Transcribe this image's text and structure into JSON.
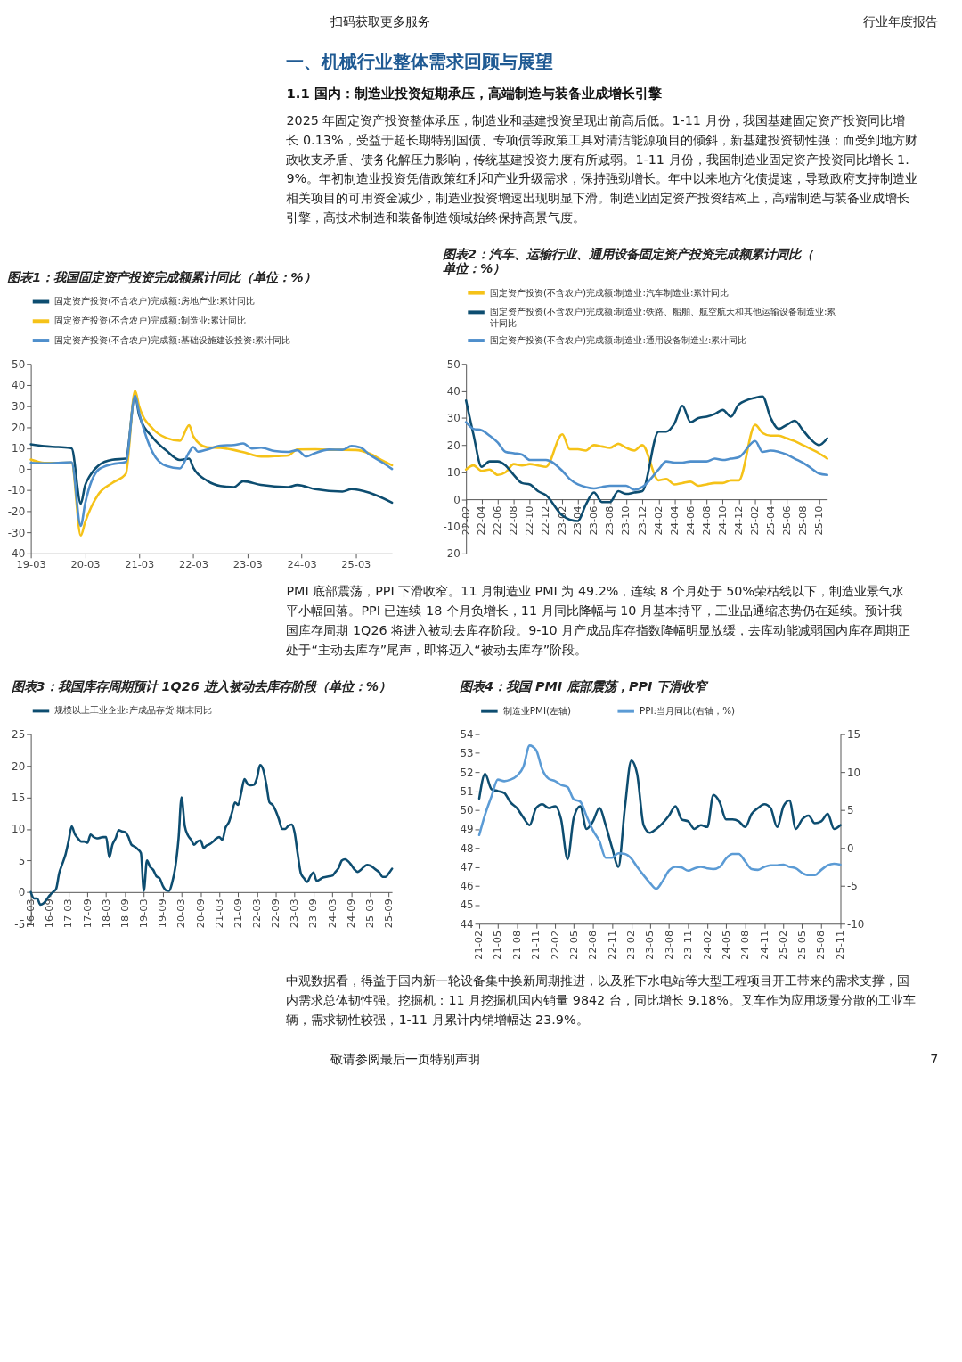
{
  "chart_data": [
    {
      "type": "other",
      "annotations": [
        "扫码获取更多服务",
        "行业年度报告"
      ]
    },
    {
      "type": "other",
      "title": "一、机械行业整体需求回顾与展望",
      "subtitle": "1.1 国内：制造业投资短期承压，高端制造与装备业成增长引擎",
      "annotations": [
        "2025 年固定资产投资整体承压，制造业和基建投资呈现出前高后低。1-11 月份，我国基建固定资产投资同比增长 0.13%，受益于超长期特别国债、专项债等政策工具对清洁能源项目的倾斜，新基建投资韧性强；而受到地方财政收支矛盾、债务化解压力影响，传统基建投资力度有所减弱。1-11 月份，我国制造业固定资产投资同比增长 1.9%。年初制造业投资凭借政策红利和产业升级需求，保持强劲增长。年中以来地方化债提速，导致政府支持制造业相关项目的可用资金减少，制造业投资增速出现明显下滑。制造业固定资产投资结构上，高端制造与装备业成增长引擎，高技术制造和装备制造领域始终保持高景气度。"
      ]
    },
    {
      "type": "line",
      "title": "图表1：我国固定资产投资完成额累计同比（单位：%）",
      "legend": "top",
      "xlim": [
        "2019-03",
        "2025-11"
      ],
      "ylim": [
        -40,
        50
      ],
      "yticks": [
        -40,
        -30,
        -20,
        -10,
        0,
        10,
        20,
        30,
        40,
        50
      ],
      "xticks": [
        {
          "value": "2019-03",
          "label": "19-03"
        },
        {
          "value": "2020-03",
          "label": "20-03"
        },
        {
          "value": "2021-03",
          "label": "21-03"
        },
        {
          "value": "2022-03",
          "label": "22-03"
        },
        {
          "value": "2023-03",
          "label": "23-03"
        },
        {
          "value": "2024-03",
          "label": "24-03"
        },
        {
          "value": "2025-03",
          "label": "25-03"
        }
      ],
      "series": [
        {
          "name": "固定资产投资(不含农户)完成额:房地产业:累计同比",
          "color": "#0d4d70",
          "x": [
            "2019-03",
            "2019-06",
            "2019-09",
            "2019-12",
            "2020-02",
            "2020-03",
            "2020-04",
            "2020-06",
            "2020-09",
            "2020-12",
            "2021-02",
            "2021-03",
            "2021-06",
            "2021-09",
            "2021-12",
            "2022-02",
            "2022-03",
            "2022-06",
            "2022-09",
            "2022-12",
            "2023-02",
            "2023-06",
            "2023-12",
            "2024-02",
            "2024-06",
            "2024-12",
            "2025-02",
            "2025-06",
            "2025-11"
          ],
          "values": [
            11.8,
            10.9,
            10.5,
            9.9,
            -16.3,
            -7.7,
            -3.3,
            1.9,
            4.5,
            5,
            35,
            25.6,
            15,
            8.8,
            4.4,
            5,
            0.7,
            -5.4,
            -8,
            -8.5,
            -5.7,
            -7.5,
            -8.5,
            -7.5,
            -9.5,
            -10.6,
            -9.5,
            -11.2,
            -15.9
          ]
        },
        {
          "name": "固定资产投资(不含农户)完成额:制造业:累计同比",
          "color": "#f5c218",
          "x": [
            "2019-03",
            "2019-06",
            "2019-12",
            "2020-02",
            "2020-03",
            "2020-06",
            "2020-09",
            "2020-12",
            "2021-02",
            "2021-03",
            "2021-06",
            "2021-09",
            "2021-12",
            "2022-02",
            "2022-03",
            "2022-06",
            "2022-09",
            "2022-12",
            "2023-02",
            "2023-06",
            "2023-09",
            "2023-12",
            "2024-02",
            "2024-06",
            "2024-09",
            "2024-12",
            "2025-03",
            "2025-06",
            "2025-09",
            "2025-11"
          ],
          "values": [
            4.6,
            3.0,
            3.1,
            -31.5,
            -25.2,
            -11.7,
            -6.5,
            -2.2,
            37.3,
            29.8,
            19.2,
            14.8,
            13.5,
            20.9,
            15.6,
            10.4,
            10.1,
            9.1,
            8.1,
            6.0,
            6.2,
            6.5,
            9.4,
            9.5,
            9.2,
            9.2,
            9.1,
            7.5,
            4.0,
            1.9
          ]
        },
        {
          "name": "固定资产投资(不含农户)完成额:基础设施建设投资:累计同比",
          "color": "#4f8fcc",
          "x": [
            "2019-03",
            "2019-06",
            "2019-12",
            "2020-02",
            "2020-03",
            "2020-06",
            "2020-09",
            "2020-12",
            "2021-02",
            "2021-03",
            "2021-06",
            "2021-09",
            "2021-12",
            "2022-02",
            "2022-03",
            "2022-04",
            "2022-06",
            "2022-09",
            "2022-12",
            "2023-02",
            "2023-04",
            "2023-06",
            "2023-09",
            "2023-12",
            "2024-02",
            "2024-04",
            "2024-06",
            "2024-09",
            "2024-12",
            "2025-02",
            "2025-04",
            "2025-06",
            "2025-09",
            "2025-11"
          ],
          "values": [
            3.0,
            2.8,
            3.3,
            -26.9,
            -16.4,
            -0.1,
            2.4,
            3.4,
            35.0,
            26.8,
            7.8,
            1.5,
            0.4,
            8.1,
            10.5,
            8.3,
            9.3,
            11.2,
            11.5,
            12.2,
            9.8,
            10.2,
            8.6,
            8.2,
            9.0,
            6.0,
            7.7,
            9.3,
            9.2,
            11.0,
            10.3,
            7.0,
            3.0,
            0.1
          ]
        }
      ]
    },
    {
      "type": "line",
      "title": "图表2：汽车、运输行业、通用设备固定资产投资完成额累计同比（单位：%）",
      "legend": "top",
      "xlim": [
        "2022-02",
        "2025-11"
      ],
      "ylim": [
        -20,
        50
      ],
      "yticks": [
        -20,
        -10,
        0,
        10,
        20,
        30,
        40,
        50
      ],
      "xticks": [
        {
          "value": "2022-02",
          "label": "22-02"
        },
        {
          "value": "2022-04",
          "label": "22-04"
        },
        {
          "value": "2022-06",
          "label": "22-06"
        },
        {
          "value": "2022-08",
          "label": "22-08"
        },
        {
          "value": "2022-10",
          "label": "22-10"
        },
        {
          "value": "2022-12",
          "label": "22-12"
        },
        {
          "value": "2023-02",
          "label": "23-02"
        },
        {
          "value": "2023-04",
          "label": "23-04"
        },
        {
          "value": "2023-06",
          "label": "23-06"
        },
        {
          "value": "2023-08",
          "label": "23-08"
        },
        {
          "value": "2023-10",
          "label": "23-10"
        },
        {
          "value": "2023-12",
          "label": "23-12"
        },
        {
          "value": "2024-02",
          "label": "24-02"
        },
        {
          "value": "2024-04",
          "label": "24-04"
        },
        {
          "value": "2024-06",
          "label": "24-06"
        },
        {
          "value": "2024-08",
          "label": "24-08"
        },
        {
          "value": "2024-10",
          "label": "24-10"
        },
        {
          "value": "2024-12",
          "label": "24-12"
        },
        {
          "value": "2025-02",
          "label": "25-02"
        },
        {
          "value": "2025-04",
          "label": "25-04"
        },
        {
          "value": "2025-06",
          "label": "25-06"
        },
        {
          "value": "2025-08",
          "label": "25-08"
        },
        {
          "value": "2025-10",
          "label": "25-10"
        }
      ],
      "x": [
        "2022-02",
        "2022-03",
        "2022-04",
        "2022-05",
        "2022-06",
        "2022-07",
        "2022-08",
        "2022-09",
        "2022-10",
        "2022-11",
        "2022-12",
        "2023-02",
        "2023-03",
        "2023-04",
        "2023-05",
        "2023-06",
        "2023-07",
        "2023-08",
        "2023-09",
        "2023-10",
        "2023-11",
        "2023-12",
        "2024-02",
        "2024-03",
        "2024-04",
        "2024-05",
        "2024-06",
        "2024-07",
        "2024-08",
        "2024-09",
        "2024-10",
        "2024-11",
        "2024-12",
        "2025-02",
        "2025-03",
        "2025-04",
        "2025-05",
        "2025-06",
        "2025-07",
        "2025-08",
        "2025-09",
        "2025-10",
        "2025-11"
      ],
      "series": [
        {
          "name": "固定资产投资(不含农户)完成额:制造业:汽车制造业:累计同比",
          "color": "#f5c218",
          "values": [
            11,
            12.5,
            10.5,
            11,
            9,
            10,
            13,
            12.5,
            13,
            12.5,
            12,
            24,
            18.5,
            18.5,
            18,
            20,
            19.5,
            19,
            20.5,
            19,
            18,
            20,
            7,
            7.5,
            5.5,
            6,
            6.5,
            5,
            5.5,
            6,
            6,
            7,
            7,
            27.5,
            24.5,
            23.5,
            23.5,
            22.5,
            21.5,
            20,
            18.5,
            17,
            15
          ]
        },
        {
          "name": "固定资产投资(不含农户)完成额:制造业:铁路、船舶、航空航天和其他运输设备制造业:累计同比",
          "color": "#0d4d70",
          "values": [
            36.5,
            24,
            12,
            14,
            14,
            12.5,
            9,
            6,
            5.5,
            3,
            1.5,
            -6,
            -7.5,
            -8,
            -2,
            2.5,
            -1,
            -1,
            3,
            2,
            2.5,
            3,
            25,
            25,
            28,
            34.5,
            28.5,
            30,
            30.5,
            31.5,
            33,
            30.5,
            35,
            37.5,
            38,
            30,
            26,
            27.5,
            29,
            25.5,
            22,
            20,
            22.5
          ]
        },
        {
          "name": "固定资产投资(不含农户)完成额:制造业:通用设备制造业:累计同比",
          "color": "#4f8fcc",
          "values": [
            28.5,
            26,
            25.5,
            23.5,
            21,
            17.5,
            17,
            16.5,
            14.5,
            14.5,
            14.5,
            10.5,
            7.5,
            5.5,
            4.5,
            4,
            4.5,
            5,
            5,
            5,
            3.5,
            4.5,
            11,
            14,
            13.5,
            13.5,
            14,
            14,
            14,
            15,
            14.5,
            15,
            15.5,
            21.5,
            17.5,
            18,
            17.5,
            16.5,
            15,
            13.5,
            11.5,
            9.5,
            9
          ]
        }
      ]
    },
    {
      "type": "other",
      "annotations": [
        "PMI 底部震荡，PPI 下滑收窄。11 月制造业 PMI 为 49.2%，连续 8 个月处于 50%荣枯线以下，制造业景气水平小幅回落。PPI 已连续 18 个月负增长，11 月同比降幅与 10 月基本持平，工业品通缩态势仍在延续。预计我国库存周期 1Q26 将进入被动去库存阶段。9-10 月产成品库存指数降幅明显放缓，去库动能减弱国内库存周期正处于“主动去库存”尾声，即将迈入“被动去库存”阶段。"
      ]
    },
    {
      "type": "line",
      "title": "图表3：我国库存周期预计 1Q26 进入被动去库存阶段（单位：%）",
      "legend": "top",
      "xlim": [
        "2016-03",
        "2025-10"
      ],
      "ylim": [
        -5,
        25
      ],
      "yticks": [
        -5,
        0,
        5,
        10,
        15,
        20,
        25
      ],
      "xticks": [
        {
          "value": "2016-03",
          "label": "16-03"
        },
        {
          "value": "2016-09",
          "label": "16-09"
        },
        {
          "value": "2017-03",
          "label": "17-03"
        },
        {
          "value": "2017-09",
          "label": "17-09"
        },
        {
          "value": "2018-03",
          "label": "18-03"
        },
        {
          "value": "2018-09",
          "label": "18-09"
        },
        {
          "value": "2019-03",
          "label": "19-03"
        },
        {
          "value": "2019-09",
          "label": "19-09"
        },
        {
          "value": "2020-03",
          "label": "20-03"
        },
        {
          "value": "2020-09",
          "label": "20-09"
        },
        {
          "value": "2021-03",
          "label": "21-03"
        },
        {
          "value": "2021-09",
          "label": "21-09"
        },
        {
          "value": "2022-03",
          "label": "22-03"
        },
        {
          "value": "2022-09",
          "label": "22-09"
        },
        {
          "value": "2023-03",
          "label": "23-03"
        },
        {
          "value": "2023-09",
          "label": "23-09"
        },
        {
          "value": "2024-03",
          "label": "24-03"
        },
        {
          "value": "2024-09",
          "label": "24-09"
        },
        {
          "value": "2025-03",
          "label": "25-03"
        },
        {
          "value": "2025-09",
          "label": "25-09"
        }
      ],
      "x": [
        "2016-03",
        "2016-04",
        "2016-05",
        "2016-06",
        "2016-07",
        "2016-08",
        "2016-09",
        "2016-10",
        "2016-11",
        "2016-12",
        "2017-01",
        "2017-02",
        "2017-03",
        "2017-04",
        "2017-05",
        "2017-06",
        "2017-07",
        "2017-08",
        "2017-09",
        "2017-10",
        "2017-11",
        "2017-12",
        "2018-01",
        "2018-02",
        "2018-03",
        "2018-04",
        "2018-05",
        "2018-06",
        "2018-07",
        "2018-08",
        "2018-09",
        "2018-10",
        "2018-11",
        "2018-12",
        "2019-01",
        "2019-02",
        "2019-03",
        "2019-04",
        "2019-05",
        "2019-06",
        "2019-07",
        "2019-08",
        "2019-09",
        "2019-10",
        "2019-11",
        "2019-12",
        "2020-01",
        "2020-02",
        "2020-03",
        "2020-04",
        "2020-05",
        "2020-06",
        "2020-07",
        "2020-08",
        "2020-09",
        "2020-10",
        "2020-11",
        "2020-12",
        "2021-01",
        "2021-02",
        "2021-03",
        "2021-04",
        "2021-05",
        "2021-06",
        "2021-07",
        "2021-08",
        "2021-09",
        "2021-10",
        "2021-11",
        "2021-12",
        "2022-01",
        "2022-02",
        "2022-03",
        "2022-04",
        "2022-05",
        "2022-06",
        "2022-07",
        "2022-08",
        "2022-09",
        "2022-10",
        "2022-11",
        "2022-12",
        "2023-01",
        "2023-02",
        "2023-03",
        "2023-04",
        "2023-05",
        "2023-06",
        "2023-07",
        "2023-08",
        "2023-09",
        "2023-10",
        "2023-11",
        "2023-12",
        "2024-01",
        "2024-02",
        "2024-03",
        "2024-04",
        "2024-05",
        "2024-06",
        "2024-07",
        "2024-08",
        "2024-09",
        "2024-10",
        "2024-11",
        "2024-12",
        "2025-01",
        "2025-02",
        "2025-03",
        "2025-04",
        "2025-05",
        "2025-06",
        "2025-07",
        "2025-08",
        "2025-09",
        "2025-10"
      ],
      "series": [
        {
          "name": "规模以上工业企业:产成品存货:期末同比",
          "color": "#0d4d70",
          "values": [
            0,
            -1,
            -1,
            -2,
            -1.8,
            -1.2,
            -0.5,
            0,
            0.5,
            3,
            4.5,
            6,
            8,
            10.4,
            9.2,
            8.5,
            8,
            8,
            7.8,
            9.1,
            8.7,
            8.5,
            8.6,
            8.7,
            8.7,
            5.5,
            7.5,
            8.5,
            9.8,
            9.6,
            9.5,
            8.8,
            7.5,
            7.2,
            6.8,
            6.2,
            0.2,
            5,
            4,
            3.5,
            2.5,
            2.2,
            1,
            0.3,
            0.2,
            1.5,
            4,
            8.5,
            15,
            10.5,
            9,
            8.3,
            7.5,
            8,
            8.2,
            7,
            7.4,
            7.6,
            8,
            8.5,
            8.7,
            8.3,
            10.2,
            11,
            12.5,
            14.2,
            13.8,
            15.8,
            17.9,
            17.1,
            16.9,
            17,
            18,
            20.1,
            19.4,
            17,
            14.2,
            13.8,
            12.8,
            11.5,
            10,
            10,
            10.5,
            10.7,
            9.5,
            6,
            3,
            2.2,
            1.6,
            2.5,
            3.1,
            1.8,
            2,
            2.3,
            2.4,
            2.5,
            2.6,
            3.2,
            3.8,
            5,
            5.2,
            4.9,
            4.3,
            3.6,
            3.2,
            3.5,
            4,
            4.3,
            4.2,
            3.9,
            3.5,
            3.1,
            2.4,
            2.4,
            3.0,
            3.7
          ]
        }
      ]
    },
    {
      "type": "line",
      "title": "图表4：我国 PMI 底部震荡，PPI 下滑收窄",
      "legend": "top",
      "xlim": [
        "2021-02",
        "2025-11"
      ],
      "ylim": [
        44,
        54
      ],
      "yticks": [
        44,
        45,
        46,
        47,
        48,
        49,
        50,
        51,
        52,
        53,
        54
      ],
      "y2lim": [
        -10,
        15
      ],
      "y2ticks": [
        -10,
        -5,
        0,
        5,
        10,
        15
      ],
      "xticks": [
        {
          "value": "2021-02",
          "label": "21-02"
        },
        {
          "value": "2021-05",
          "label": "21-05"
        },
        {
          "value": "2021-08",
          "label": "21-08"
        },
        {
          "value": "2021-11",
          "label": "21-11"
        },
        {
          "value": "2022-02",
          "label": "22-02"
        },
        {
          "value": "2022-05",
          "label": "22-05"
        },
        {
          "value": "2022-08",
          "label": "22-08"
        },
        {
          "value": "2022-11",
          "label": "22-11"
        },
        {
          "value": "2023-02",
          "label": "23-02"
        },
        {
          "value": "2023-05",
          "label": "23-05"
        },
        {
          "value": "2023-08",
          "label": "23-08"
        },
        {
          "value": "2023-11",
          "label": "23-11"
        },
        {
          "value": "2024-02",
          "label": "24-02"
        },
        {
          "value": "2024-05",
          "label": "24-05"
        },
        {
          "value": "2024-08",
          "label": "24-08"
        },
        {
          "value": "2024-11",
          "label": "24-11"
        },
        {
          "value": "2025-02",
          "label": "25-02"
        },
        {
          "value": "2025-05",
          "label": "25-05"
        },
        {
          "value": "2025-08",
          "label": "25-08"
        },
        {
          "value": "2025-11",
          "label": "25-11"
        }
      ],
      "x": [
        "2021-02",
        "2021-03",
        "2021-04",
        "2021-05",
        "2021-06",
        "2021-07",
        "2021-08",
        "2021-09",
        "2021-10",
        "2021-11",
        "2021-12",
        "2022-01",
        "2022-02",
        "2022-03",
        "2022-04",
        "2022-05",
        "2022-06",
        "2022-07",
        "2022-08",
        "2022-09",
        "2022-10",
        "2022-11",
        "2022-12",
        "2023-01",
        "2023-02",
        "2023-03",
        "2023-04",
        "2023-05",
        "2023-06",
        "2023-07",
        "2023-08",
        "2023-09",
        "2023-10",
        "2023-11",
        "2023-12",
        "2024-01",
        "2024-02",
        "2024-03",
        "2024-04",
        "2024-05",
        "2024-06",
        "2024-07",
        "2024-08",
        "2024-09",
        "2024-10",
        "2024-11",
        "2024-12",
        "2025-01",
        "2025-02",
        "2025-03",
        "2025-04",
        "2025-05",
        "2025-06",
        "2025-07",
        "2025-08",
        "2025-09",
        "2025-10",
        "2025-11"
      ],
      "series": [
        {
          "name": "制造业PMI(左轴)",
          "color": "#0d4d70",
          "values": [
            50.6,
            51.9,
            51.1,
            51.0,
            50.9,
            50.4,
            50.1,
            49.6,
            49.2,
            50.1,
            50.3,
            50.1,
            50.2,
            49.5,
            47.4,
            49.6,
            50.2,
            49.0,
            49.4,
            50.1,
            49.2,
            48.0,
            47.0,
            50.1,
            52.6,
            51.9,
            49.2,
            48.8,
            49.0,
            49.3,
            49.7,
            50.2,
            49.5,
            49.4,
            49.0,
            49.2,
            49.1,
            50.8,
            50.4,
            49.5,
            49.5,
            49.4,
            49.1,
            49.8,
            50.1,
            50.3,
            50.1,
            49.1,
            50.2,
            50.5,
            49.0,
            49.5,
            49.7,
            49.3,
            49.4,
            49.8,
            49.0,
            49.2
          ]
        },
        {
          "name": "PPI:当月同比(右轴，%)",
          "color": "#5b9bd5",
          "axis": "y2",
          "values": [
            1.7,
            4.4,
            6.8,
            9.0,
            8.8,
            9.0,
            9.5,
            10.7,
            13.5,
            12.9,
            10.3,
            9.1,
            8.8,
            8.3,
            8.0,
            6.4,
            6.1,
            4.2,
            2.3,
            0.9,
            -1.3,
            -1.3,
            -0.7,
            -0.8,
            -1.4,
            -2.5,
            -3.6,
            -4.6,
            -5.4,
            -4.4,
            -3.0,
            -2.5,
            -2.6,
            -3.0,
            -2.7,
            -2.5,
            -2.7,
            -2.8,
            -2.5,
            -1.4,
            -0.8,
            -0.8,
            -1.8,
            -2.8,
            -2.9,
            -2.5,
            -2.3,
            -2.3,
            -2.2,
            -2.5,
            -2.7,
            -3.3,
            -3.6,
            -3.6,
            -2.9,
            -2.3,
            -2.1,
            -2.2
          ]
        }
      ]
    },
    {
      "type": "other",
      "annotations": [
        "中观数据看，得益于国内新一轮设备集中换新周期推进，以及雅下水电站等大型工程项目开工带来的需求支撑，国内需求总体韧性强。挖掘机：11 月挖掘机国内销量 9842 台，同比增长 9.18%。叉车作为应用场景分散的工业车辆，需求韧性较强，1-11 月累计内销增幅达 23.9%。"
      ]
    },
    {
      "type": "other",
      "annotations": [
        "敬请参阅最后一页特别声明",
        "7"
      ]
    }
  ]
}
